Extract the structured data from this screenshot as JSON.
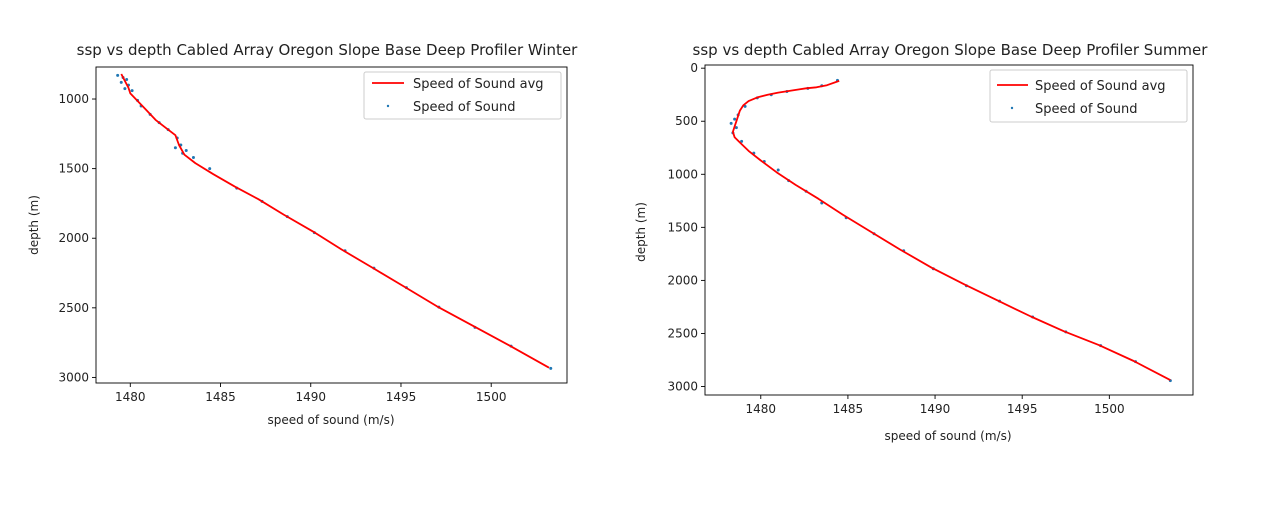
{
  "chart_data": [
    {
      "type": "line",
      "title": "ssp vs depth Cabled Array Oregon Slope Base Deep Profiler Winter",
      "xlabel": "speed of sound (m/s)",
      "ylabel": "depth (m)",
      "xlim": [
        1478.1,
        1504.2
      ],
      "ylim": [
        3040,
        770
      ],
      "y_inverted": true,
      "xticks": [
        1480,
        1485,
        1490,
        1495,
        1500
      ],
      "yticks": [
        1000,
        1500,
        2000,
        2500,
        3000
      ],
      "grid": false,
      "legend_position": "top-right",
      "colors": {
        "avg": "#ff0000",
        "points": "#1f77b4"
      },
      "series": [
        {
          "name": "Speed of Sound avg",
          "style": "line",
          "x": [
            1479.5,
            1479.7,
            1479.9,
            1480.0,
            1480.3,
            1480.9,
            1481.4,
            1482.0,
            1482.5,
            1482.7,
            1483.0,
            1483.6,
            1484.6,
            1485.8,
            1487.1,
            1488.5,
            1490.1,
            1491.7,
            1493.4,
            1495.2,
            1497.0,
            1499.0,
            1501.0,
            1503.2
          ],
          "y": [
            820,
            870,
            920,
            960,
            1000,
            1080,
            1150,
            1210,
            1260,
            1330,
            1400,
            1460,
            1540,
            1630,
            1720,
            1830,
            1950,
            2080,
            2210,
            2350,
            2490,
            2630,
            2770,
            2930
          ]
        },
        {
          "name": "Speed of Sound",
          "style": "scatter",
          "x": [
            1479.3,
            1479.6,
            1479.8,
            1479.5,
            1479.9,
            1480.1,
            1479.7,
            1480.4,
            1480.6,
            1481.1,
            1481.6,
            1482.1,
            1482.6,
            1482.8,
            1482.5,
            1483.1,
            1482.9,
            1483.5,
            1484.4,
            1485.9,
            1487.3,
            1488.7,
            1490.2,
            1491.9,
            1493.5,
            1495.3,
            1497.1,
            1499.1,
            1501.1,
            1503.3
          ],
          "y": [
            830,
            845,
            860,
            880,
            900,
            940,
            925,
            1010,
            1050,
            1110,
            1170,
            1220,
            1280,
            1330,
            1350,
            1370,
            1390,
            1420,
            1500,
            1640,
            1735,
            1845,
            1960,
            2090,
            2215,
            2355,
            2495,
            2640,
            2775,
            2935
          ]
        }
      ]
    },
    {
      "type": "line",
      "title": "ssp vs depth Cabled Array Oregon Slope Base Deep Profiler Summer",
      "xlabel": "speed of sound (m/s)",
      "ylabel": "depth (m)",
      "xlim": [
        1476.8,
        1504.8
      ],
      "ylim": [
        3080,
        -30
      ],
      "y_inverted": true,
      "xticks": [
        1480,
        1485,
        1490,
        1495,
        1500
      ],
      "yticks": [
        0,
        500,
        1000,
        1500,
        2000,
        2500,
        3000
      ],
      "grid": false,
      "legend_position": "top-right",
      "colors": {
        "avg": "#ff0000",
        "points": "#1f77b4"
      },
      "series": [
        {
          "name": "Speed of Sound avg",
          "style": "line",
          "x": [
            1484.5,
            1483.8,
            1483.2,
            1482.6,
            1482.2,
            1481.6,
            1481.0,
            1480.4,
            1479.8,
            1479.3,
            1479.0,
            1478.8,
            1478.7,
            1478.6,
            1478.5,
            1478.4,
            1478.5,
            1478.8,
            1479.3,
            1480.0,
            1480.9,
            1482.0,
            1483.3,
            1484.7,
            1486.3,
            1488.0,
            1489.8,
            1491.7,
            1493.6,
            1495.5,
            1497.4,
            1499.4,
            1501.4,
            1503.5
          ],
          "y": [
            120,
            160,
            180,
            190,
            200,
            215,
            230,
            250,
            275,
            310,
            350,
            400,
            450,
            500,
            550,
            600,
            650,
            700,
            780,
            870,
            980,
            1100,
            1230,
            1380,
            1540,
            1710,
            1880,
            2040,
            2190,
            2340,
            2480,
            2610,
            2760,
            2940
          ]
        },
        {
          "name": "Speed of Sound",
          "style": "scatter",
          "x": [
            1484.4,
            1483.5,
            1482.7,
            1481.5,
            1480.6,
            1479.8,
            1479.1,
            1478.7,
            1478.5,
            1478.3,
            1478.6,
            1478.4,
            1478.9,
            1479.6,
            1480.2,
            1481.0,
            1481.6,
            1482.6,
            1483.5,
            1484.9,
            1486.5,
            1488.2,
            1489.9,
            1491.8,
            1493.7,
            1495.6,
            1497.5,
            1499.5,
            1501.5,
            1503.5
          ],
          "y": [
            115,
            165,
            190,
            220,
            250,
            280,
            360,
            440,
            480,
            520,
            560,
            610,
            690,
            800,
            880,
            960,
            1060,
            1160,
            1270,
            1410,
            1560,
            1720,
            1890,
            2050,
            2195,
            2345,
            2485,
            2615,
            2765,
            2945
          ]
        }
      ]
    }
  ]
}
